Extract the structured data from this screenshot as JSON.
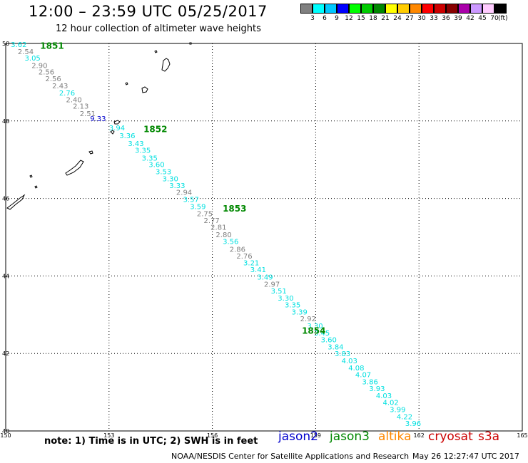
{
  "header": {
    "title": "12:00 – 23:59 UTC 05/25/2017",
    "subtitle": "12 hour collection of altimeter wave heights"
  },
  "legend": {
    "unit": "(ft)",
    "bins": [
      {
        "label": "3",
        "color": "#808080"
      },
      {
        "label": "6",
        "color": "#00ffff"
      },
      {
        "label": "9",
        "color": "#00c8ff"
      },
      {
        "label": "12",
        "color": "#0000ff"
      },
      {
        "label": "15",
        "color": "#00ff00"
      },
      {
        "label": "18",
        "color": "#00cc00"
      },
      {
        "label": "21",
        "color": "#008800"
      },
      {
        "label": "24",
        "color": "#ffff00"
      },
      {
        "label": "27",
        "color": "#ffcc00"
      },
      {
        "label": "30",
        "color": "#ff8800"
      },
      {
        "label": "33",
        "color": "#ff0000"
      },
      {
        "label": "36",
        "color": "#cc0000"
      },
      {
        "label": "39",
        "color": "#880000"
      },
      {
        "label": "42",
        "color": "#aa00aa"
      },
      {
        "label": "45",
        "color": "#cc99ff"
      },
      {
        "label": "70",
        "color": "#ffccff"
      },
      {
        "label": "",
        "color": "#000000"
      }
    ]
  },
  "map": {
    "lon_labels": [
      "150",
      "153",
      "156",
      "159",
      "162",
      "165"
    ],
    "lat_labels": [
      "50",
      "48",
      "46",
      "44",
      "42",
      "40"
    ],
    "lon_range": [
      150,
      165
    ],
    "lat_range": [
      40,
      50
    ]
  },
  "chart_data": {
    "type": "scatter",
    "title": "12:00 – 23:59 UTC 05/25/2017",
    "xlabel": "",
    "ylabel": "",
    "xlim": [
      150,
      165
    ],
    "ylim": [
      40,
      50
    ],
    "track_times": [
      {
        "label": "1851",
        "lon": 151.0,
        "lat": 49.95
      },
      {
        "label": "1852",
        "lon": 154.0,
        "lat": 47.8
      },
      {
        "label": "1853",
        "lon": 156.3,
        "lat": 45.75
      },
      {
        "label": "1854",
        "lon": 158.6,
        "lat": 42.6
      }
    ],
    "points": [
      {
        "lon": 150.15,
        "lat": 49.98,
        "value": "3.62",
        "color": "#00e0e0"
      },
      {
        "lon": 150.35,
        "lat": 49.8,
        "value": "2.54",
        "color": "#808080"
      },
      {
        "lon": 150.55,
        "lat": 49.63,
        "value": "3.05",
        "color": "#00e0e0"
      },
      {
        "lon": 150.75,
        "lat": 49.44,
        "value": "2.90",
        "color": "#808080"
      },
      {
        "lon": 150.95,
        "lat": 49.27,
        "value": "2.56",
        "color": "#808080"
      },
      {
        "lon": 151.15,
        "lat": 49.1,
        "value": "2.56",
        "color": "#808080"
      },
      {
        "lon": 151.35,
        "lat": 48.92,
        "value": "2.43",
        "color": "#808080"
      },
      {
        "lon": 151.55,
        "lat": 48.73,
        "value": "2.76",
        "color": "#00e0e0"
      },
      {
        "lon": 151.75,
        "lat": 48.56,
        "value": "2.40",
        "color": "#808080"
      },
      {
        "lon": 151.95,
        "lat": 48.39,
        "value": "2.13",
        "color": "#808080"
      },
      {
        "lon": 152.15,
        "lat": 48.2,
        "value": "2.51",
        "color": "#808080"
      },
      {
        "lon": 152.45,
        "lat": 48.07,
        "value": "9.33",
        "color": "#0000cc"
      },
      {
        "lon": 153.0,
        "lat": 47.83,
        "value": "3.94",
        "color": "#00e0e0"
      },
      {
        "lon": 153.3,
        "lat": 47.63,
        "value": "3.36",
        "color": "#00e0e0"
      },
      {
        "lon": 153.55,
        "lat": 47.43,
        "value": "3.43",
        "color": "#00e0e0"
      },
      {
        "lon": 153.75,
        "lat": 47.25,
        "value": "3.35",
        "color": "#00e0e0"
      },
      {
        "lon": 153.95,
        "lat": 47.05,
        "value": "3.35",
        "color": "#00e0e0"
      },
      {
        "lon": 154.15,
        "lat": 46.88,
        "value": "3.60",
        "color": "#00e0e0"
      },
      {
        "lon": 154.35,
        "lat": 46.7,
        "value": "3.53",
        "color": "#00e0e0"
      },
      {
        "lon": 154.55,
        "lat": 46.52,
        "value": "3.30",
        "color": "#00e0e0"
      },
      {
        "lon": 154.75,
        "lat": 46.34,
        "value": "3.33",
        "color": "#00e0e0"
      },
      {
        "lon": 154.95,
        "lat": 46.17,
        "value": "2.94",
        "color": "#808080"
      },
      {
        "lon": 155.15,
        "lat": 45.98,
        "value": "3.57",
        "color": "#00e0e0"
      },
      {
        "lon": 155.35,
        "lat": 45.8,
        "value": "3.59",
        "color": "#00e0e0"
      },
      {
        "lon": 155.55,
        "lat": 45.62,
        "value": "2.75",
        "color": "#808080"
      },
      {
        "lon": 155.75,
        "lat": 45.44,
        "value": "2.77",
        "color": "#808080"
      },
      {
        "lon": 155.95,
        "lat": 45.27,
        "value": "2.81",
        "color": "#808080"
      },
      {
        "lon": 156.1,
        "lat": 45.07,
        "value": "2.80",
        "color": "#808080"
      },
      {
        "lon": 156.3,
        "lat": 44.9,
        "value": "3.56",
        "color": "#00e0e0"
      },
      {
        "lon": 156.5,
        "lat": 44.7,
        "value": "2.86",
        "color": "#808080"
      },
      {
        "lon": 156.7,
        "lat": 44.52,
        "value": "2.76",
        "color": "#808080"
      },
      {
        "lon": 156.9,
        "lat": 44.35,
        "value": "3.21",
        "color": "#00e0e0"
      },
      {
        "lon": 157.1,
        "lat": 44.17,
        "value": "3.41",
        "color": "#00e0e0"
      },
      {
        "lon": 157.3,
        "lat": 43.98,
        "value": "3.49",
        "color": "#00e0e0"
      },
      {
        "lon": 157.5,
        "lat": 43.8,
        "value": "2.97",
        "color": "#808080"
      },
      {
        "lon": 157.7,
        "lat": 43.62,
        "value": "3.51",
        "color": "#00e0e0"
      },
      {
        "lon": 157.9,
        "lat": 43.44,
        "value": "3.30",
        "color": "#00e0e0"
      },
      {
        "lon": 158.1,
        "lat": 43.26,
        "value": "3.35",
        "color": "#00e0e0"
      },
      {
        "lon": 158.3,
        "lat": 43.08,
        "value": "3.39",
        "color": "#00e0e0"
      },
      {
        "lon": 158.55,
        "lat": 42.9,
        "value": "2.92",
        "color": "#808080"
      },
      {
        "lon": 158.75,
        "lat": 42.72,
        "value": "3.30",
        "color": "#00e0e0"
      },
      {
        "lon": 158.95,
        "lat": 42.54,
        "value": "3.45",
        "color": "#00e0e0"
      },
      {
        "lon": 159.15,
        "lat": 42.36,
        "value": "3.60",
        "color": "#00e0e0"
      },
      {
        "lon": 159.35,
        "lat": 42.18,
        "value": "3.84",
        "color": "#00e0e0"
      },
      {
        "lon": 159.55,
        "lat": 42.0,
        "value": "3.83",
        "color": "#00e0e0"
      },
      {
        "lon": 159.75,
        "lat": 41.82,
        "value": "4.03",
        "color": "#00e0e0"
      },
      {
        "lon": 159.95,
        "lat": 41.64,
        "value": "4.08",
        "color": "#00e0e0"
      },
      {
        "lon": 160.15,
        "lat": 41.46,
        "value": "4.07",
        "color": "#00e0e0"
      },
      {
        "lon": 160.35,
        "lat": 41.28,
        "value": "3.86",
        "color": "#00e0e0"
      },
      {
        "lon": 160.55,
        "lat": 41.1,
        "value": "3.93",
        "color": "#00e0e0"
      },
      {
        "lon": 160.75,
        "lat": 40.92,
        "value": "4.03",
        "color": "#00e0e0"
      },
      {
        "lon": 160.95,
        "lat": 40.74,
        "value": "4.02",
        "color": "#00e0e0"
      },
      {
        "lon": 161.15,
        "lat": 40.56,
        "value": "3.99",
        "color": "#00e0e0"
      },
      {
        "lon": 161.35,
        "lat": 40.38,
        "value": "4.22",
        "color": "#00e0e0"
      },
      {
        "lon": 161.6,
        "lat": 40.2,
        "value": "3.96",
        "color": "#00e0e0"
      }
    ]
  },
  "footer": {
    "note": "note: 1) Time is in UTC; 2) SWH is in feet",
    "satellites": [
      {
        "name": "jason2",
        "color": "#0000cc"
      },
      {
        "name": "jason3",
        "color": "#008800"
      },
      {
        "name": "altika",
        "color": "#ff8800"
      },
      {
        "name": "cryosat",
        "color": "#cc0000"
      },
      {
        "name": "s3a",
        "color": "#cc0000"
      }
    ],
    "credit": "NOAA/NESDIS Center for Satellite Applications and Research",
    "timestamp": "May 26 12:27:47 UTC 2017"
  }
}
